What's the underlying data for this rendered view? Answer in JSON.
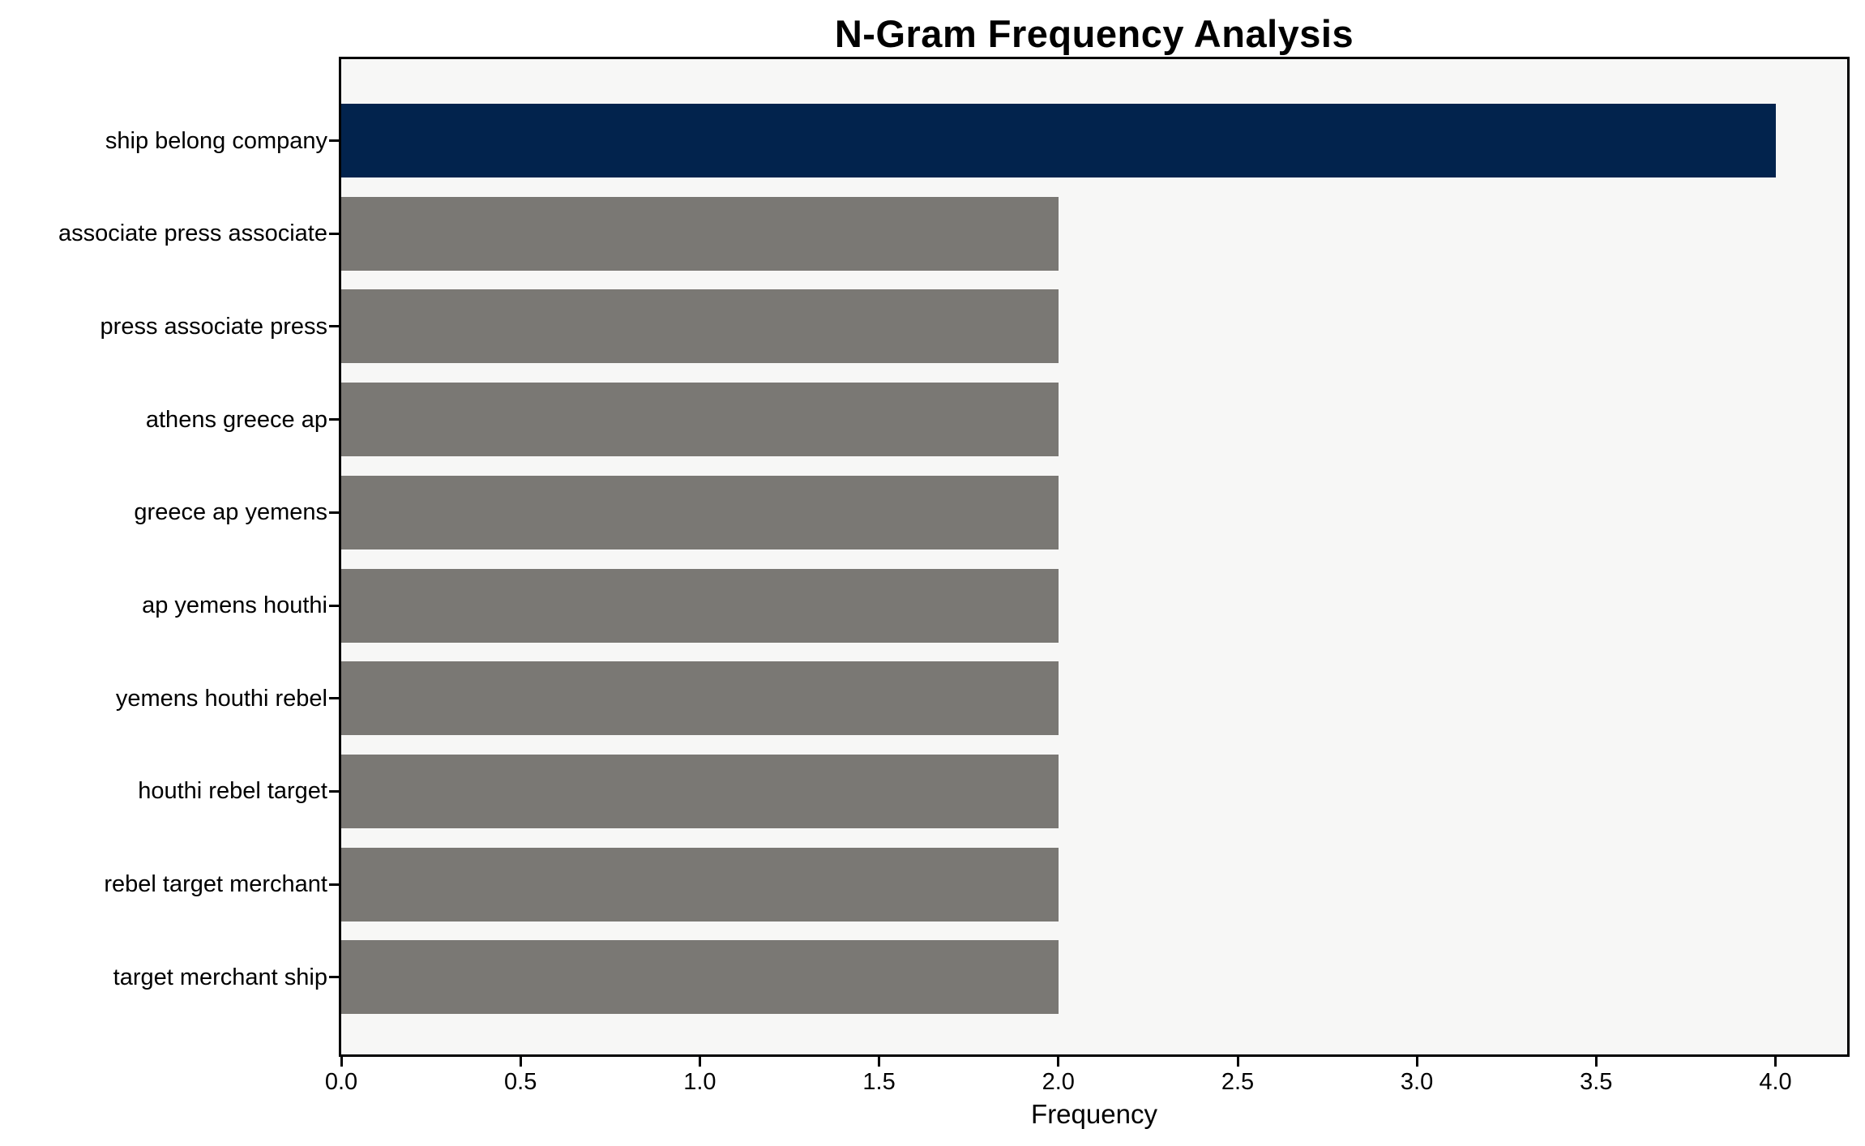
{
  "chart_data": {
    "type": "bar",
    "orientation": "horizontal",
    "title": "N-Gram Frequency Analysis",
    "xlabel": "Frequency",
    "ylabel": "",
    "categories": [
      "ship belong company",
      "associate press associate",
      "press associate press",
      "athens greece ap",
      "greece ap yemens",
      "ap yemens houthi",
      "yemens houthi rebel",
      "houthi rebel target",
      "rebel target merchant",
      "target merchant ship"
    ],
    "values": [
      4,
      2,
      2,
      2,
      2,
      2,
      2,
      2,
      2,
      2
    ],
    "highlight_index": 0,
    "xticks": [
      0,
      0.5,
      1,
      1.5,
      2,
      2.5,
      3,
      3.5,
      4
    ],
    "xtick_labels": [
      "0.0",
      "0.5",
      "1.0",
      "1.5",
      "2.0",
      "2.5",
      "3.0",
      "3.5",
      "4.0"
    ],
    "xlim": [
      0,
      4.2
    ],
    "grid": false,
    "legend_position": "none",
    "colors": {
      "highlight_bar": "#02234d",
      "default_bar": "#7a7874",
      "plot_background": "#f7f7f6",
      "figure_background": "#ffffff",
      "spine": "#000000",
      "text": "#000000"
    }
  }
}
